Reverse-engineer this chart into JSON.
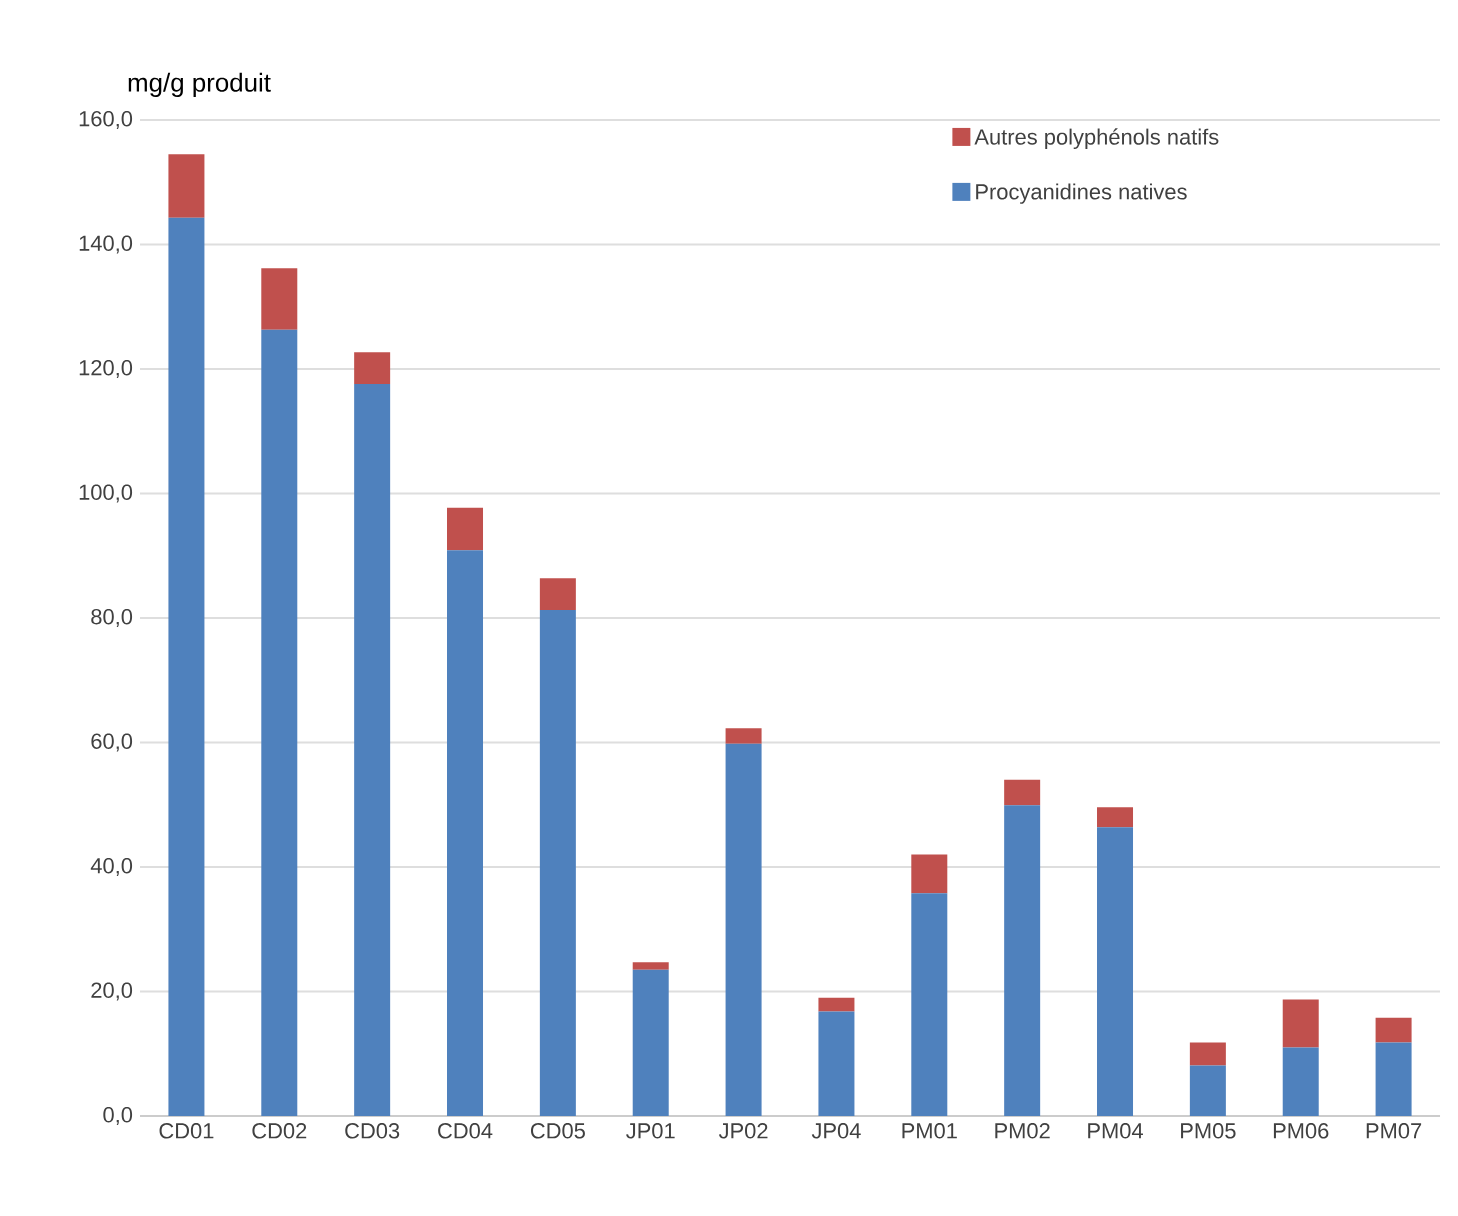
{
  "chart_data": {
    "type": "bar",
    "stacked": true,
    "ylabel": "mg/g produit",
    "categories": [
      "CD01",
      "CD02",
      "CD03",
      "CD04",
      "CD05",
      "JP01",
      "JP02",
      "JP04",
      "PM01",
      "PM02",
      "PM04",
      "PM05",
      "PM06",
      "PM07"
    ],
    "series": [
      {
        "name": "Procyanidines natives",
        "color": "#4f81bd",
        "values": [
          144.3,
          126.3,
          117.6,
          90.9,
          81.3,
          23.5,
          59.8,
          16.8,
          35.8,
          49.9,
          46.4,
          8.1,
          11.0,
          11.8
        ]
      },
      {
        "name": "Autres polyphénols natifs",
        "color": "#c0504d",
        "values": [
          10.2,
          9.9,
          5.1,
          6.8,
          5.1,
          1.2,
          2.5,
          2.2,
          6.2,
          4.1,
          3.2,
          3.7,
          7.7,
          4.0
        ]
      }
    ],
    "ylim": [
      0,
      160
    ],
    "yticks": [
      {
        "value": 0,
        "label": "0,0"
      },
      {
        "value": 20,
        "label": "20,0"
      },
      {
        "value": 40,
        "label": "40,0"
      },
      {
        "value": 60,
        "label": "60,0"
      },
      {
        "value": 80,
        "label": "80,0"
      },
      {
        "value": 100,
        "label": "100,0"
      },
      {
        "value": 120,
        "label": "120,0"
      },
      {
        "value": 140,
        "label": "140,0"
      },
      {
        "value": 160,
        "label": "160,0"
      }
    ],
    "grid": "y",
    "legend": "top right"
  }
}
